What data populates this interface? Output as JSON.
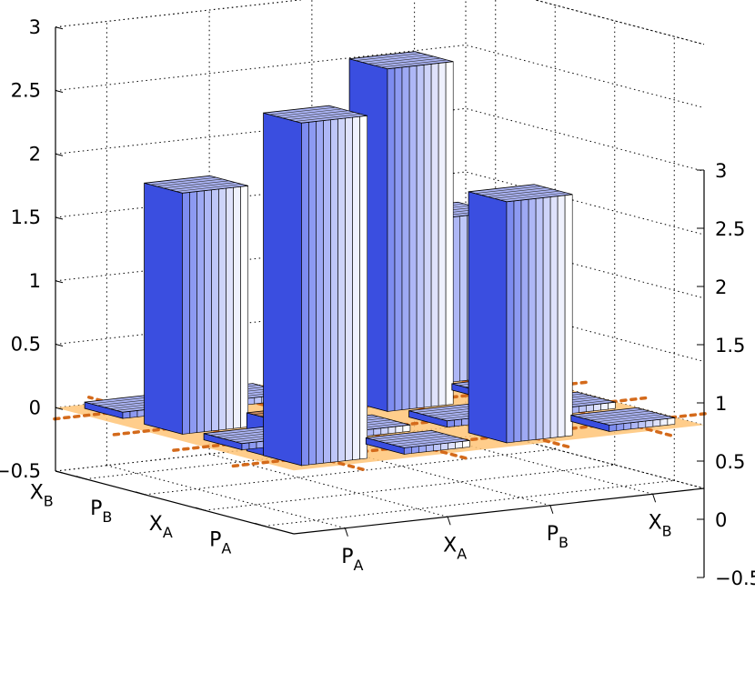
{
  "chart_data": {
    "type": "bar3d",
    "title": "",
    "row_categories": [
      {
        "main": "P",
        "sub": "A"
      },
      {
        "main": "X",
        "sub": "A"
      },
      {
        "main": "P",
        "sub": "B"
      },
      {
        "main": "X",
        "sub": "B"
      }
    ],
    "col_categories": [
      {
        "main": "P",
        "sub": "A"
      },
      {
        "main": "X",
        "sub": "A"
      },
      {
        "main": "P",
        "sub": "B"
      },
      {
        "main": "X",
        "sub": "B"
      }
    ],
    "zlim": [
      -0.5,
      3
    ],
    "zticks_left": [
      "3",
      "2.5",
      "2",
      "1.5",
      "1",
      "0.5",
      "0",
      "−0.5"
    ],
    "zticks_right": [
      "3",
      "2.5",
      "2",
      "1.5",
      "1",
      "0.5",
      "0",
      "−0.5"
    ],
    "grid": true,
    "matrix": [
      [
        2.7,
        0.05,
        1.9,
        0.05
      ],
      [
        0.05,
        0.05,
        0.05,
        0.05
      ],
      [
        1.9,
        -0.3,
        2.7,
        0.05
      ],
      [
        0.05,
        0.05,
        0.05,
        1.3
      ]
    ],
    "colors": {
      "bar_dark": "#3a4ee0",
      "bar_mid": "#8a96f0",
      "bar_light": "#ffffff",
      "plane": "#ffc477",
      "dashed": "#d46a1b",
      "negative_top": "#c98a5e"
    }
  }
}
